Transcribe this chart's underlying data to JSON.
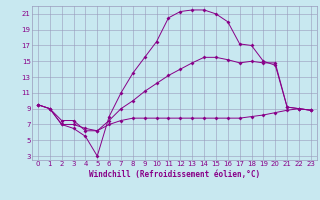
{
  "xlabel": "Windchill (Refroidissement éolien,°C)",
  "background_color": "#c8e8f0",
  "grid_color": "#9999bb",
  "line_color": "#880088",
  "xlim": [
    -0.5,
    23.5
  ],
  "ylim": [
    2.5,
    22.0
  ],
  "xticks": [
    0,
    1,
    2,
    3,
    4,
    5,
    6,
    7,
    8,
    9,
    10,
    11,
    12,
    13,
    14,
    15,
    16,
    17,
    18,
    19,
    20,
    21,
    22,
    23
  ],
  "yticks": [
    3,
    5,
    7,
    9,
    11,
    13,
    15,
    17,
    19,
    21
  ],
  "line1_x": [
    0,
    1,
    2,
    3,
    4,
    5,
    6,
    7,
    8,
    9,
    10,
    11,
    12,
    13,
    14,
    15,
    16,
    17,
    18,
    19,
    20,
    21,
    22,
    23
  ],
  "line1_y": [
    9.5,
    9.0,
    7.0,
    6.5,
    5.5,
    3.0,
    8.0,
    11.0,
    13.5,
    15.5,
    17.5,
    20.5,
    21.3,
    21.5,
    21.5,
    21.0,
    20.0,
    17.2,
    17.0,
    15.0,
    14.5,
    9.2,
    9.0,
    8.8
  ],
  "line2_x": [
    0,
    1,
    2,
    3,
    4,
    5,
    6,
    7,
    8,
    9,
    10,
    11,
    12,
    13,
    14,
    15,
    16,
    17,
    18,
    19,
    20,
    21,
    22,
    23
  ],
  "line2_y": [
    9.5,
    9.0,
    7.5,
    7.5,
    6.2,
    6.2,
    7.5,
    9.0,
    10.0,
    11.2,
    12.2,
    13.2,
    14.0,
    14.8,
    15.5,
    15.5,
    15.2,
    14.8,
    15.0,
    14.8,
    14.8,
    9.2,
    9.0,
    8.8
  ],
  "line3_x": [
    0,
    1,
    2,
    3,
    4,
    5,
    6,
    7,
    8,
    9,
    10,
    11,
    12,
    13,
    14,
    15,
    16,
    17,
    18,
    19,
    20,
    21,
    22,
    23
  ],
  "line3_y": [
    9.5,
    9.0,
    7.0,
    7.0,
    6.5,
    6.2,
    7.0,
    7.5,
    7.8,
    7.8,
    7.8,
    7.8,
    7.8,
    7.8,
    7.8,
    7.8,
    7.8,
    7.8,
    8.0,
    8.2,
    8.5,
    8.8,
    9.0,
    8.8
  ],
  "tick_fontsize": 5.0,
  "xlabel_fontsize": 5.5,
  "marker_size": 2.0,
  "line_width": 0.7
}
